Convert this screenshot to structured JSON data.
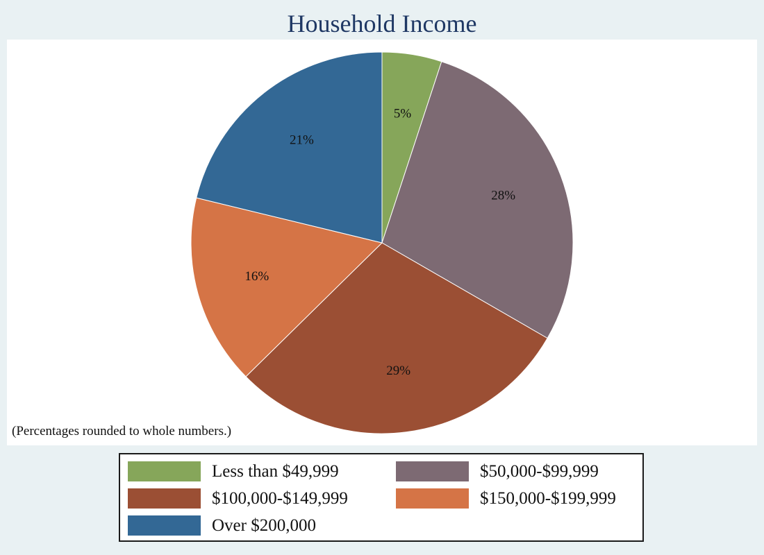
{
  "title": "Household Income",
  "footnote": "(Percentages rounded to whole numbers.)",
  "colors": {
    "background": "#e9f1f3",
    "title": "#1f3864",
    "plot_background": "#ffffff",
    "slice_edge": "#ffffff"
  },
  "chart_data": {
    "type": "pie",
    "title": "Household Income",
    "categories": [
      "Less than $49,999",
      "$50,000-$99,999",
      "$100,000-$149,999",
      "$150,000-$199,999",
      "Over $200,000"
    ],
    "values": [
      5,
      28,
      29,
      16,
      21
    ],
    "labels": [
      "5%",
      "28%",
      "29%",
      "16%",
      "21%"
    ],
    "colors": [
      "#86a65a",
      "#7d6a73",
      "#9b4f34",
      "#d57446",
      "#336895"
    ],
    "start_angle": "12 o'clock",
    "direction": "clockwise",
    "legend_position": "bottom",
    "note": "(Percentages rounded to whole numbers.)"
  },
  "legend": [
    {
      "label": "Less than $49,999",
      "color": "#86a65a"
    },
    {
      "label": "$50,000-$99,999",
      "color": "#7d6a73"
    },
    {
      "label": "$100,000-$149,999",
      "color": "#9b4f34"
    },
    {
      "label": "$150,000-$199,999",
      "color": "#d57446"
    },
    {
      "label": "Over $200,000",
      "color": "#336895"
    }
  ]
}
